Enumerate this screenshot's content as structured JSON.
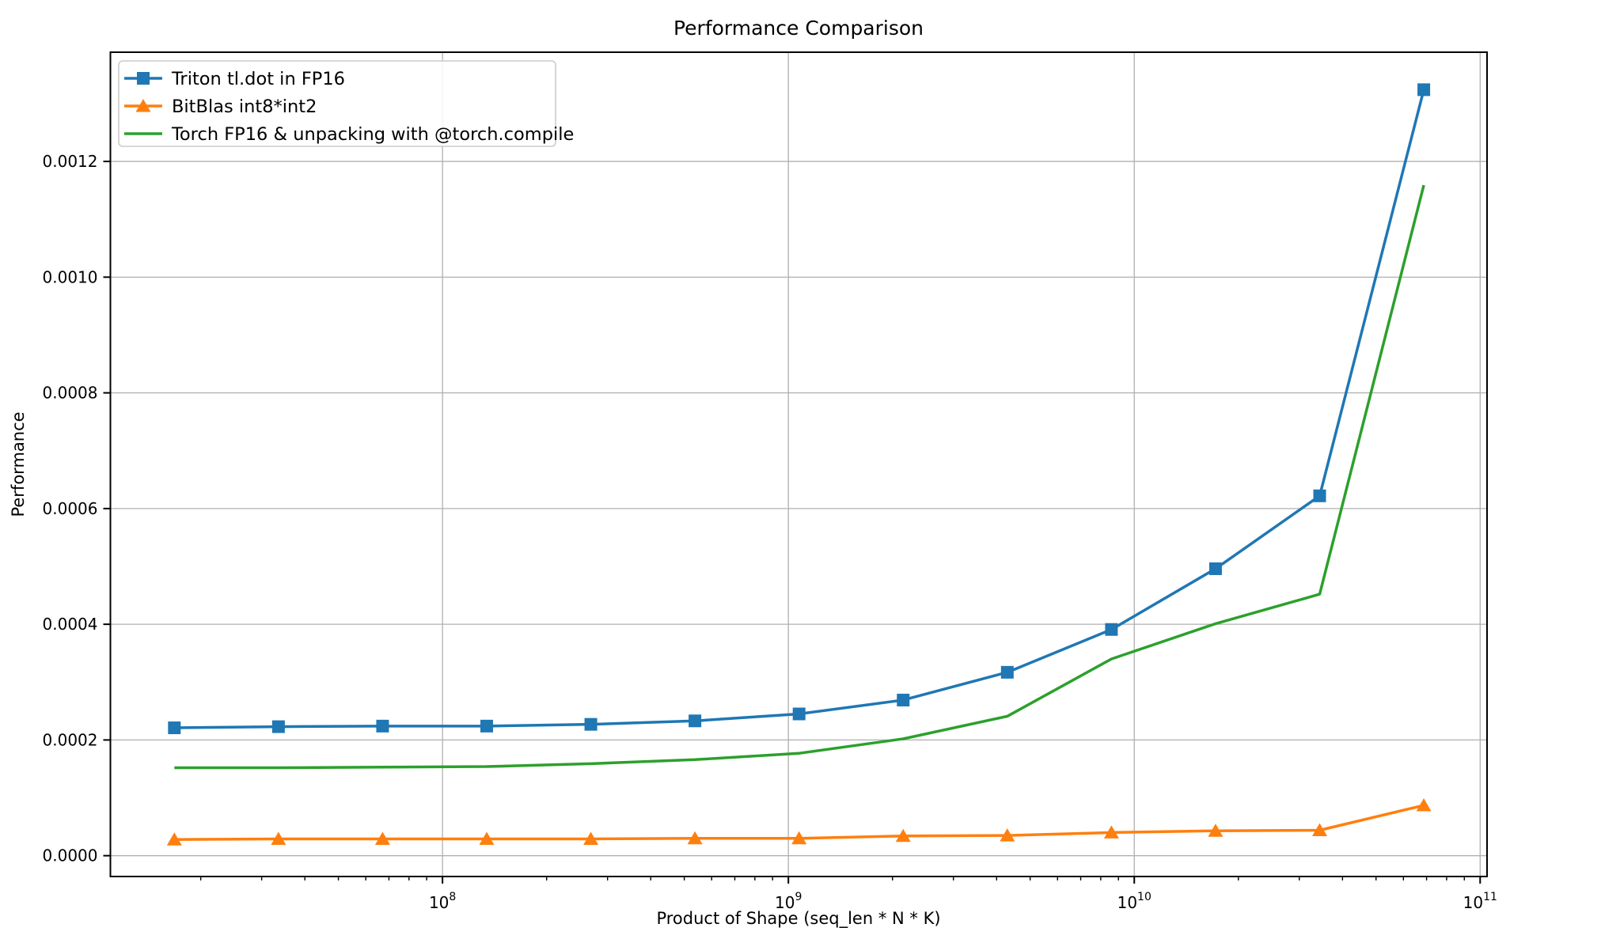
{
  "title": "Performance Comparison",
  "chart_data": {
    "type": "line",
    "title": "Performance Comparison",
    "xlabel": "Product of Shape (seq_len * N * K)",
    "ylabel": "Performance",
    "x_scale": "log",
    "grid": true,
    "legend_position": "upper-left",
    "xlim": [
      10960000,
      104700000000
    ],
    "ylim": [
      -3.6e-05,
      0.0013888
    ],
    "x_major_ticks": [
      100000000,
      1000000000,
      10000000000,
      100000000000
    ],
    "x_major_tick_exponents": [
      "8",
      "9",
      "10",
      "11"
    ],
    "x_tick_base": "10",
    "y_ticks": [
      0.0,
      0.0002,
      0.0004,
      0.0006,
      0.0008,
      0.001,
      0.0012
    ],
    "y_tick_labels": [
      "0.0000",
      "0.0002",
      "0.0004",
      "0.0006",
      "0.0008",
      "0.0010",
      "0.0012"
    ],
    "x": [
      16777216,
      33554432,
      67108864,
      134217728,
      268435456,
      536870912,
      1073741824,
      2147483648,
      4294967296,
      8589934592,
      17179869184,
      34359738368,
      68719476736
    ],
    "series": [
      {
        "name": "Triton tl.dot in FP16",
        "color": "#1f77b4",
        "marker": "square",
        "values": [
          0.000221,
          0.000223,
          0.000224,
          0.000224,
          0.000227,
          0.000233,
          0.000245,
          0.000269,
          0.000317,
          0.000391,
          0.000496,
          0.000622,
          0.001324
        ]
      },
      {
        "name": "BitBlas int8*int2",
        "color": "#ff7f0e",
        "marker": "triangle",
        "values": [
          2.8e-05,
          2.9e-05,
          2.9e-05,
          2.9e-05,
          2.9e-05,
          3e-05,
          3e-05,
          3.4e-05,
          3.5e-05,
          4e-05,
          4.3e-05,
          4.4e-05,
          8.7e-05
        ]
      },
      {
        "name": "Torch FP16 & unpacking with @torch.compile",
        "color": "#2ca02c",
        "marker": "none",
        "values": [
          0.000152,
          0.000152,
          0.000153,
          0.000154,
          0.000159,
          0.000166,
          0.000177,
          0.000202,
          0.000241,
          0.00034,
          0.000401,
          0.000452,
          0.001159
        ]
      }
    ],
    "styles": {
      "grid_color": "#b0b0b0",
      "spine_color": "#000000",
      "legend_edge_color": "#cccccc",
      "background": "#ffffff"
    }
  }
}
